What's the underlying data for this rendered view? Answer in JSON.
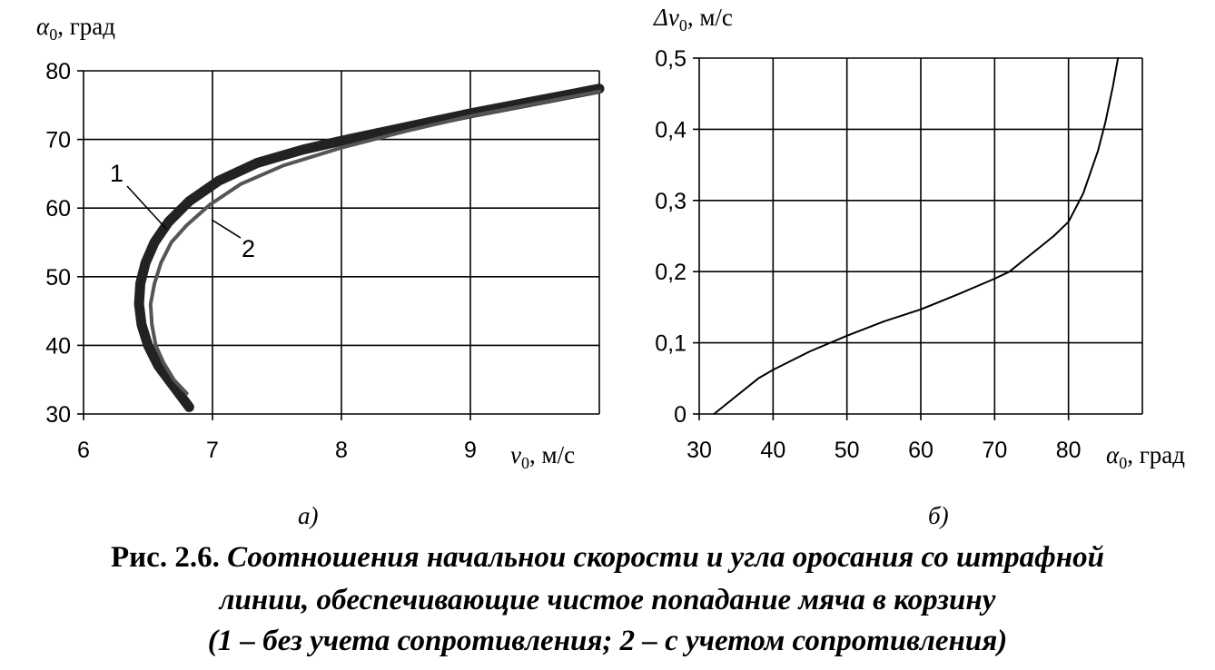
{
  "chart_data": [
    {
      "type": "line",
      "panel_label": "а)",
      "ylabel_sym": "α",
      "ylabel_sub": "0",
      "ylabel_unit": ", град",
      "xlabel_sym": "v",
      "xlabel_sub": "0",
      "xlabel_unit": ", м/с",
      "xlim": [
        6,
        10
      ],
      "ylim": [
        30,
        80
      ],
      "xticks": [
        "6",
        "7",
        "8",
        "9"
      ],
      "yticks": [
        "30",
        "40",
        "50",
        "60",
        "70",
        "80"
      ],
      "grid": true,
      "series": [
        {
          "name": "1",
          "points": [
            [
              6.82,
              31
            ],
            [
              6.7,
              34
            ],
            [
              6.58,
              37
            ],
            [
              6.5,
              40
            ],
            [
              6.45,
              43
            ],
            [
              6.43,
              46
            ],
            [
              6.44,
              49
            ],
            [
              6.48,
              52
            ],
            [
              6.55,
              55
            ],
            [
              6.66,
              58
            ],
            [
              6.82,
              61
            ],
            [
              7.05,
              64
            ],
            [
              7.35,
              66.6
            ],
            [
              7.7,
              68.5
            ],
            [
              8.0,
              69.8
            ],
            [
              8.5,
              71.8
            ],
            [
              9.0,
              73.8
            ],
            [
              9.5,
              75.6
            ],
            [
              10.0,
              77.4
            ]
          ]
        },
        {
          "name": "2",
          "points": [
            [
              6.8,
              33
            ],
            [
              6.7,
              35
            ],
            [
              6.62,
              37.5
            ],
            [
              6.56,
              40
            ],
            [
              6.53,
              43
            ],
            [
              6.52,
              46
            ],
            [
              6.55,
              49
            ],
            [
              6.6,
              52
            ],
            [
              6.68,
              55
            ],
            [
              6.8,
              57.5
            ],
            [
              6.98,
              60.5
            ],
            [
              7.22,
              63.5
            ],
            [
              7.55,
              66.2
            ],
            [
              8.0,
              68.8
            ],
            [
              8.5,
              71.2
            ],
            [
              9.0,
              73.4
            ],
            [
              9.5,
              75.2
            ],
            [
              10.0,
              77.0
            ]
          ]
        }
      ]
    },
    {
      "type": "line",
      "panel_label": "б)",
      "ylabel_sym": "Δv",
      "ylabel_sub": "0",
      "ylabel_unit": ", м/с",
      "xlabel_sym": "α",
      "xlabel_sub": "0",
      "xlabel_unit": ", град",
      "xlim": [
        30,
        90
      ],
      "ylim": [
        0,
        0.5
      ],
      "xticks": [
        "30",
        "40",
        "50",
        "60",
        "70",
        "80"
      ],
      "yticks": [
        "0",
        "0,1",
        "0,2",
        "0,3",
        "0,4",
        "0,5"
      ],
      "grid": true,
      "series": [
        {
          "points": [
            [
              32,
              0
            ],
            [
              35,
              0.025
            ],
            [
              38,
              0.05
            ],
            [
              40,
              0.062
            ],
            [
              45,
              0.088
            ],
            [
              50,
              0.11
            ],
            [
              55,
              0.13
            ],
            [
              60,
              0.147
            ],
            [
              65,
              0.168
            ],
            [
              70,
              0.19
            ],
            [
              72,
              0.2
            ],
            [
              75,
              0.225
            ],
            [
              78,
              0.25
            ],
            [
              80,
              0.27
            ],
            [
              82,
              0.31
            ],
            [
              84,
              0.37
            ],
            [
              85,
              0.41
            ],
            [
              86,
              0.46
            ],
            [
              86.7,
              0.5
            ]
          ]
        }
      ]
    }
  ],
  "caption": {
    "number": "Рис. 2.6.",
    "line1": "Соотношения начальнои скорости и угла оросания со штрафной",
    "line2": "линии, обеспечивающие чистое попадание мяча в корзину",
    "line3": "(1 – без учета сопротивления; 2 – с учетом сопротивления)"
  }
}
